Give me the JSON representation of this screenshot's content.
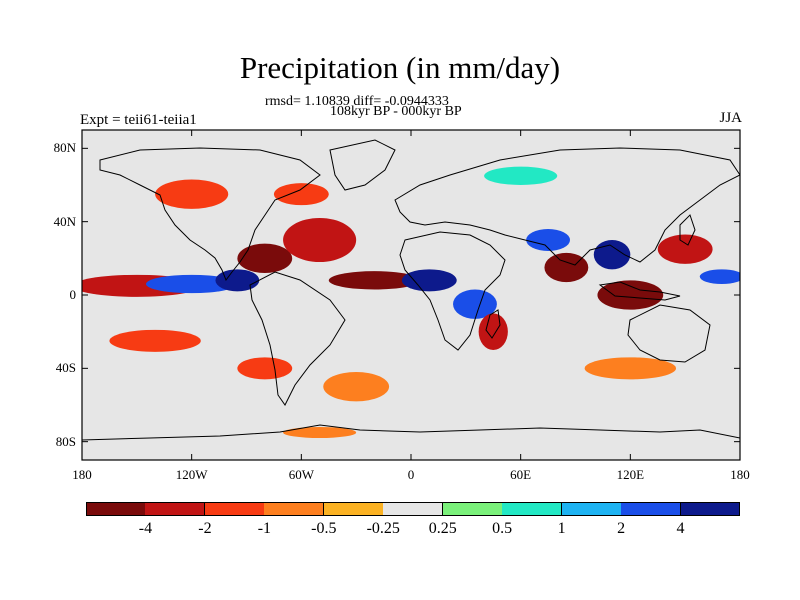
{
  "title": "Precipitation (in mm/day)",
  "stats_line": "rmsd= 1.10839  diff= -0.0944333",
  "period_line": "108kyr BP - 000kyr BP",
  "experiment_label": "Expt = teii61-teiia1",
  "season": "JJA",
  "chart_data": {
    "type": "heatmap",
    "title": "Precipitation (in mm/day)",
    "projection": "cylindrical equidistant",
    "xlim": [
      -180,
      180
    ],
    "ylim": [
      -90,
      90
    ],
    "x_tick_labels": [
      "180",
      "120W",
      "60W",
      "0",
      "60E",
      "120E",
      "180"
    ],
    "x_ticks": [
      -180,
      -120,
      -60,
      0,
      60,
      120,
      180
    ],
    "y_tick_labels": [
      "80N",
      "40N",
      "0",
      "40S",
      "80S"
    ],
    "y_ticks": [
      80,
      40,
      0,
      -40,
      -80
    ],
    "colorbar": {
      "colors": [
        "#7a0b0b",
        "#c11414",
        "#f73b13",
        "#fd7f1f",
        "#fbb223",
        "#e6e6e6",
        "#7af07a",
        "#22e8c4",
        "#1eb3f2",
        "#1a4ee8",
        "#0d1a8c"
      ],
      "labels": [
        "-4",
        "-2",
        "-1",
        "-0.5",
        "-0.25",
        "0.25",
        "0.5",
        "1",
        "2",
        "4"
      ]
    },
    "anomaly_regions": [
      {
        "lon": -150,
        "lat": 5,
        "rx": 35,
        "ry": 6,
        "level": -2
      },
      {
        "lon": -120,
        "lat": 6,
        "rx": 25,
        "ry": 5,
        "level": 2
      },
      {
        "lon": -95,
        "lat": 8,
        "rx": 12,
        "ry": 6,
        "level": 4
      },
      {
        "lon": -80,
        "lat": 20,
        "rx": 15,
        "ry": 8,
        "level": -4
      },
      {
        "lon": -50,
        "lat": 30,
        "rx": 20,
        "ry": 12,
        "level": -2
      },
      {
        "lon": -20,
        "lat": 8,
        "rx": 25,
        "ry": 5,
        "level": -4
      },
      {
        "lon": 10,
        "lat": 8,
        "rx": 15,
        "ry": 6,
        "level": 4
      },
      {
        "lon": 35,
        "lat": -5,
        "rx": 12,
        "ry": 8,
        "level": 2
      },
      {
        "lon": 45,
        "lat": -20,
        "rx": 8,
        "ry": 10,
        "level": -2
      },
      {
        "lon": 85,
        "lat": 15,
        "rx": 12,
        "ry": 8,
        "level": -4
      },
      {
        "lon": 75,
        "lat": 30,
        "rx": 12,
        "ry": 6,
        "level": 2
      },
      {
        "lon": 110,
        "lat": 22,
        "rx": 10,
        "ry": 8,
        "level": 4
      },
      {
        "lon": 120,
        "lat": 0,
        "rx": 18,
        "ry": 8,
        "level": -4
      },
      {
        "lon": 150,
        "lat": 25,
        "rx": 15,
        "ry": 8,
        "level": -2
      },
      {
        "lon": 170,
        "lat": 10,
        "rx": 12,
        "ry": 4,
        "level": 2
      },
      {
        "lon": -140,
        "lat": -25,
        "rx": 25,
        "ry": 6,
        "level": -1
      },
      {
        "lon": -80,
        "lat": -40,
        "rx": 15,
        "ry": 6,
        "level": -1
      },
      {
        "lon": -30,
        "lat": -50,
        "rx": 18,
        "ry": 8,
        "level": -0.5
      },
      {
        "lon": 120,
        "lat": -40,
        "rx": 25,
        "ry": 6,
        "level": -0.5
      },
      {
        "lon": -120,
        "lat": 55,
        "rx": 20,
        "ry": 8,
        "level": -1
      },
      {
        "lon": -60,
        "lat": 55,
        "rx": 15,
        "ry": 6,
        "level": -1
      },
      {
        "lon": 60,
        "lat": 65,
        "rx": 20,
        "ry": 5,
        "level": 0.5
      },
      {
        "lon": -50,
        "lat": -75,
        "rx": 20,
        "ry": 3,
        "level": -0.5
      }
    ]
  }
}
